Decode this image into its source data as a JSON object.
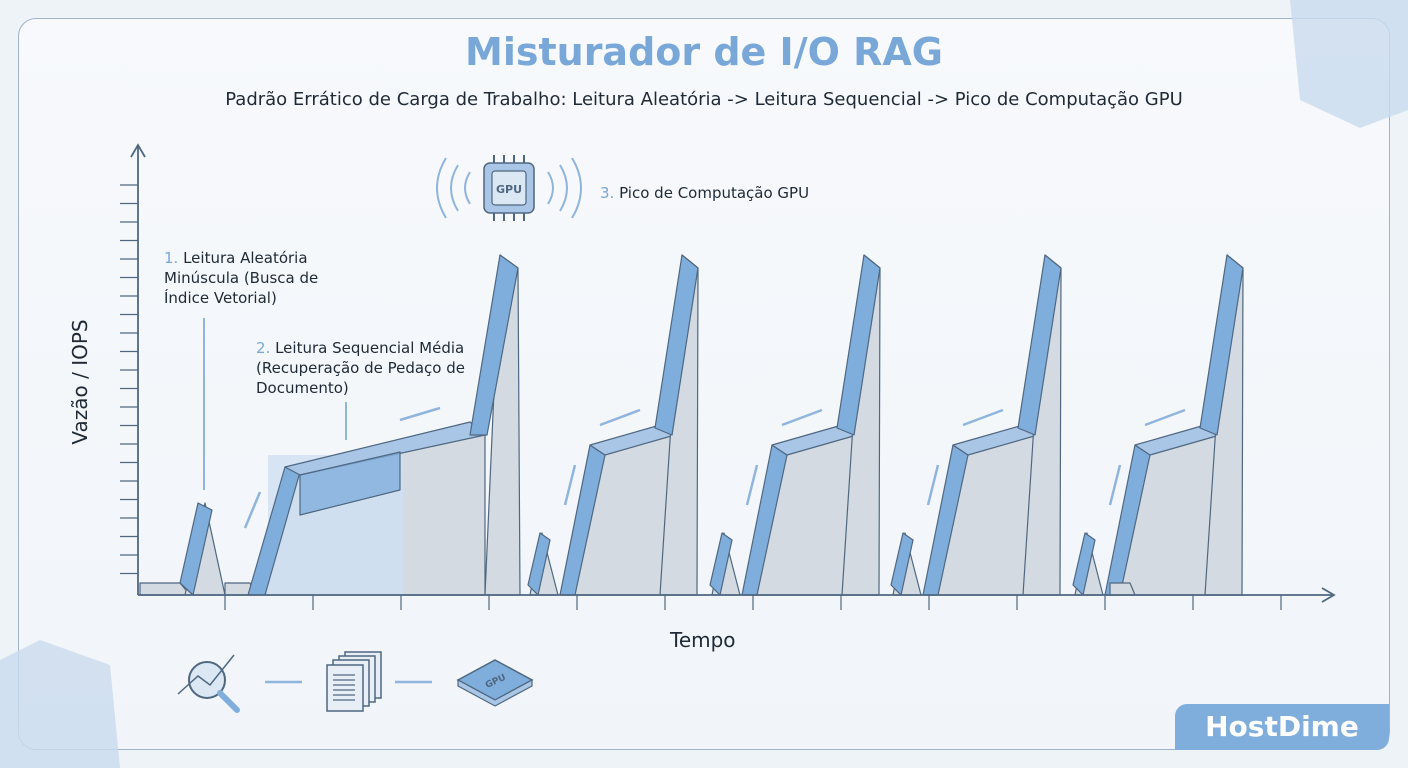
{
  "title": "Misturador de I/O RAG",
  "subtitle": "Padrão Errático de Carga de Trabalho: Leitura Aleatória -> Leitura Sequencial -> Pico de Computação GPU",
  "annotations": [
    {
      "num": "1.",
      "text": "Leitura Aleatória Minúscula (Busca de Índice Vetorial)"
    },
    {
      "num": "2.",
      "text": "Leitura Sequencial Média (Recuperação de Pedaço de Documento)"
    },
    {
      "num": "3.",
      "text": "Pico de Computação GPU"
    }
  ],
  "gpu_chip_label": "GPU",
  "axes": {
    "y_label": "Vazão / IOPS",
    "x_label": "Tempo"
  },
  "flow_icons": [
    "search-analytics-icon",
    "documents-icon",
    "gpu-chip-icon"
  ],
  "brand": "HostDime",
  "colors": {
    "accent": "#78a7d8",
    "bar_blue": "#7faedc",
    "gray_fill": "#d3dae1",
    "axis": "#4f6780"
  }
}
